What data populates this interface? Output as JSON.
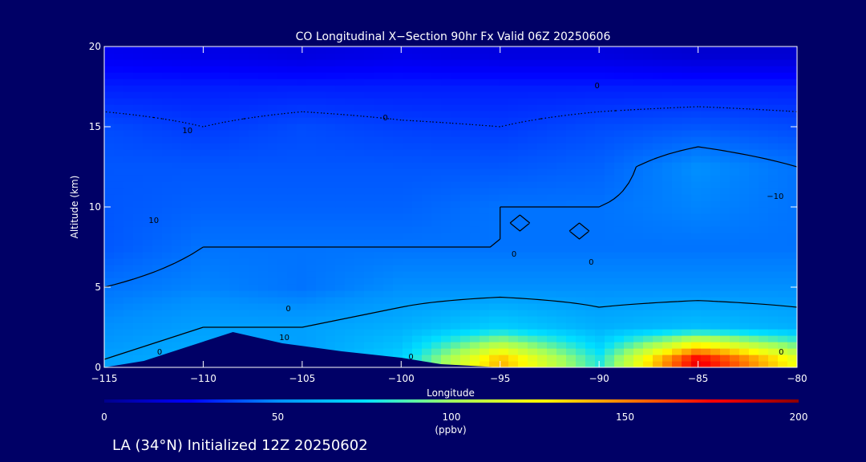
{
  "chart_data": {
    "type": "heatmap",
    "title": "CO Longitudinal X−Section 90hr  Fx Valid 06Z 20250606",
    "xlabel": "Longitude",
    "ylabel": "Altitude (km)",
    "xlim": [
      -115,
      -80
    ],
    "ylim": [
      0,
      20
    ],
    "x_ticks": [
      -115,
      -110,
      -105,
      -100,
      -95,
      -90,
      -85,
      -80
    ],
    "x_tick_labels": [
      "−115",
      "−110",
      "−105",
      "−100",
      "−95",
      "−90",
      "−85",
      "−80"
    ],
    "y_ticks": [
      0,
      5,
      10,
      15,
      20
    ],
    "y_tick_labels": [
      "0",
      "5",
      "10",
      "15",
      "20"
    ],
    "colorbar": {
      "min": 0,
      "max": 200,
      "ticks": [
        0,
        50,
        100,
        150,
        200
      ],
      "tick_labels": [
        "0",
        "50",
        "100",
        "150",
        "200"
      ],
      "unit": "(ppbv)",
      "colors": [
        "#00008b",
        "#0000ff",
        "#0090ff",
        "#00e0ff",
        "#a0ff60",
        "#ffff00",
        "#ff8000",
        "#ff0000",
        "#8b0000"
      ]
    },
    "x": [
      -115,
      -110,
      -105,
      -100,
      -95,
      -90,
      -85,
      -80
    ],
    "y": [
      0.5,
      2.5,
      5,
      7.5,
      10,
      12.5,
      15,
      17.5,
      19.5
    ],
    "z": [
      [
        55,
        60,
        55,
        70,
        140,
        80,
        180,
        120
      ],
      [
        50,
        55,
        55,
        60,
        70,
        60,
        65,
        60
      ],
      [
        45,
        48,
        45,
        50,
        50,
        50,
        50,
        50
      ],
      [
        40,
        45,
        45,
        45,
        45,
        45,
        45,
        45
      ],
      [
        40,
        42,
        42,
        42,
        45,
        45,
        48,
        45
      ],
      [
        40,
        40,
        40,
        40,
        40,
        42,
        50,
        45
      ],
      [
        38,
        35,
        38,
        36,
        35,
        38,
        40,
        38
      ],
      [
        30,
        30,
        30,
        30,
        30,
        30,
        30,
        30
      ],
      [
        22,
        20,
        18,
        20,
        18,
        18,
        15,
        15
      ]
    ],
    "terrain": [
      {
        "lon": -115,
        "alt": 0
      },
      {
        "lon": -113,
        "alt": 0.4
      },
      {
        "lon": -111,
        "alt": 1.2
      },
      {
        "lon": -108.5,
        "alt": 2.2
      },
      {
        "lon": -106,
        "alt": 1.5
      },
      {
        "lon": -103,
        "alt": 1.0
      },
      {
        "lon": -100,
        "alt": 0.6
      },
      {
        "lon": -98,
        "alt": 0.2
      },
      {
        "lon": -95,
        "alt": 0
      },
      {
        "lon": -80,
        "alt": 0
      }
    ],
    "contour_labels": [
      {
        "text": "10",
        "lon": -110.8,
        "alt": 14.8
      },
      {
        "text": "10",
        "lon": -112.5,
        "alt": 9.2
      },
      {
        "text": "0",
        "lon": -100.8,
        "alt": 15.6
      },
      {
        "text": "0",
        "lon": -90.1,
        "alt": 17.6
      },
      {
        "text": "−10",
        "lon": -81.1,
        "alt": 10.7
      },
      {
        "text": "0",
        "lon": -94.3,
        "alt": 7.1
      },
      {
        "text": "0",
        "lon": -90.4,
        "alt": 6.6
      },
      {
        "text": "0",
        "lon": -105.7,
        "alt": 3.7
      },
      {
        "text": "10",
        "lon": -105.9,
        "alt": 1.9
      },
      {
        "text": "0",
        "lon": -112.2,
        "alt": 1.0
      },
      {
        "text": "0",
        "lon": -99.5,
        "alt": 0.7
      },
      {
        "text": "0",
        "lon": -80.8,
        "alt": 1.0
      }
    ]
  },
  "footer": {
    "location_text": "LA (34°N) Initialized 12Z 20250602"
  }
}
